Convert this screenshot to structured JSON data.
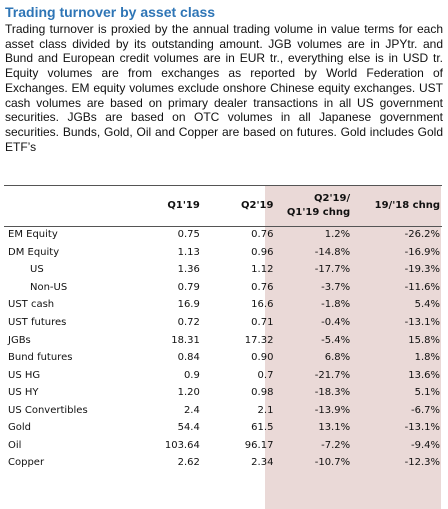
{
  "title": "Trading turnover by asset class",
  "description": "Trading turnover is proxied by the annual trading volume in value terms for each asset class divided by its outstanding amount. JGB volumes are in JPYtr. and Bund and European credit volumes are in EUR tr., everything else is in USD tr. Equity volumes are from exchanges as reported by World Federation of Exchanges. EM equity volumes exclude onshore Chinese equity exchanges. UST cash volumes are based on primary dealer transactions in all US government securities. JGBs are based on OTC volumes in all Japanese government securities. Bunds, Gold, Oil and Copper are based on futures. Gold includes Gold ETF’s",
  "table": {
    "headers": {
      "label": "",
      "q1": "Q1'19",
      "q2": "Q2'19",
      "chng_line1": "Q2'19/",
      "chng_line2": "Q1'19 chng",
      "yoy": "19/'18 chng"
    },
    "shade_color": "#ead9d7",
    "rows": [
      {
        "label": "EM Equity",
        "q1": "0.75",
        "q2": "0.76",
        "chng": "1.2%",
        "yoy": "-26.2%",
        "indent": false
      },
      {
        "label": "DM Equity",
        "q1": "1.13",
        "q2": "0.96",
        "chng": "-14.8%",
        "yoy": "-16.9%",
        "indent": false
      },
      {
        "label": "US",
        "q1": "1.36",
        "q2": "1.12",
        "chng": "-17.7%",
        "yoy": "-19.3%",
        "indent": true
      },
      {
        "label": "Non-US",
        "q1": "0.79",
        "q2": "0.76",
        "chng": "-3.7%",
        "yoy": "-11.6%",
        "indent": true
      },
      {
        "label": "UST cash",
        "q1": "16.9",
        "q2": "16.6",
        "chng": "-1.8%",
        "yoy": "5.4%",
        "indent": false
      },
      {
        "label": "UST futures",
        "q1": "0.72",
        "q2": "0.71",
        "chng": "-0.4%",
        "yoy": "-13.1%",
        "indent": false
      },
      {
        "label": "JGBs",
        "q1": "18.31",
        "q2": "17.32",
        "chng": "-5.4%",
        "yoy": "15.8%",
        "indent": false
      },
      {
        "label": "Bund futures",
        "q1": "0.84",
        "q2": "0.90",
        "chng": "6.8%",
        "yoy": "1.8%",
        "indent": false
      },
      {
        "label": "US HG",
        "q1": "0.9",
        "q2": "0.7",
        "chng": "-21.7%",
        "yoy": "13.6%",
        "indent": false
      },
      {
        "label": "US HY",
        "q1": "1.20",
        "q2": "0.98",
        "chng": "-18.3%",
        "yoy": "5.1%",
        "indent": false
      },
      {
        "label": "US Convertibles",
        "q1": "2.4",
        "q2": "2.1",
        "chng": "-13.9%",
        "yoy": "-6.7%",
        "indent": false
      },
      {
        "label": "Gold",
        "q1": "54.4",
        "q2": "61.5",
        "chng": "13.1%",
        "yoy": "-13.1%",
        "indent": false
      },
      {
        "label": "Oil",
        "q1": "103.64",
        "q2": "96.17",
        "chng": "-7.2%",
        "yoy": "-9.4%",
        "indent": false
      },
      {
        "label": "Copper",
        "q1": "2.62",
        "q2": "2.34",
        "chng": "-10.7%",
        "yoy": "-12.3%",
        "indent": false
      }
    ]
  }
}
